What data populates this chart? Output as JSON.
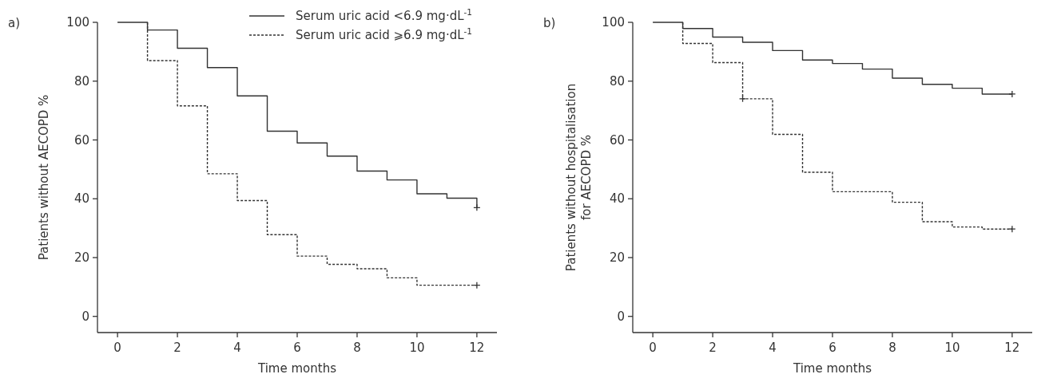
{
  "chart_data": [
    {
      "type": "step",
      "title": "a)",
      "xlabel": "Time months",
      "ylabel": "Patients without AECOPD %",
      "xlim": [
        -0.67,
        12.67
      ],
      "ylim": [
        -5.5,
        100
      ],
      "xticks": [
        0,
        2,
        4,
        6,
        8,
        10,
        12
      ],
      "yticks": [
        0,
        20,
        40,
        60,
        80,
        100
      ],
      "legend": "top right",
      "grid": false,
      "marker": "none",
      "series": [
        {
          "name": "Serum uric acid <6.9 mg·dL$^{-1}$",
          "color": "#333333",
          "line_style": "solid",
          "x": [
            0,
            1,
            2,
            3,
            4,
            5,
            6,
            7,
            8,
            9,
            10,
            11,
            12
          ],
          "values": [
            100,
            97.4,
            91.2,
            84.6,
            75,
            63,
            59,
            54.5,
            49.4,
            46.4,
            41.7,
            40.2,
            37
          ]
        },
        {
          "name": "Serum uric acid ⩾6.9 mg·dL$^{-1}$",
          "color": "#333333",
          "line_style": "dashed",
          "x": [
            1,
            1,
            2,
            3,
            4,
            5,
            6,
            7,
            8,
            9,
            10,
            12
          ],
          "values": [
            100,
            87,
            71.6,
            48.5,
            39.4,
            27.8,
            20.5,
            17.7,
            16.2,
            13.1,
            10.6,
            10.6
          ]
        },
        {
          "type": "scatter",
          "marker": "cross",
          "color": "#333333",
          "x": [
            12,
            12
          ],
          "values": [
            37,
            10.6
          ]
        }
      ]
    },
    {
      "type": "step",
      "title": "b)",
      "xlabel": "Time months",
      "ylabel": "Patients without hospitalisation\nfor AECOPD %",
      "xlim": [
        -0.67,
        12.67
      ],
      "ylim": [
        -5.5,
        100
      ],
      "xticks": [
        0,
        2,
        4,
        6,
        8,
        10,
        12
      ],
      "yticks": [
        0,
        20,
        40,
        60,
        80,
        100
      ],
      "grid": false,
      "marker": "none",
      "series": [
        {
          "color": "#333333",
          "line_style": "solid",
          "x": [
            0,
            1,
            2,
            3,
            4,
            5,
            6,
            7,
            8,
            9,
            10,
            11,
            12
          ],
          "values": [
            100,
            97.9,
            95,
            93.2,
            90.4,
            87.2,
            86,
            84.1,
            81,
            78.9,
            77.6,
            75.6,
            75.6
          ]
        },
        {
          "color": "#333333",
          "line_style": "dashed",
          "x": [
            1,
            1,
            2,
            3,
            4,
            5,
            6,
            8,
            9,
            10,
            11,
            12
          ],
          "values": [
            100,
            92.8,
            86.3,
            74,
            61.9,
            49,
            42.4,
            38.8,
            32.2,
            30.4,
            29.7,
            29.7
          ]
        },
        {
          "type": "scatter",
          "marker": "cross",
          "color": "#333333",
          "x": [
            3,
            12,
            12
          ],
          "values": [
            74,
            75.6,
            29.7
          ]
        }
      ]
    }
  ]
}
